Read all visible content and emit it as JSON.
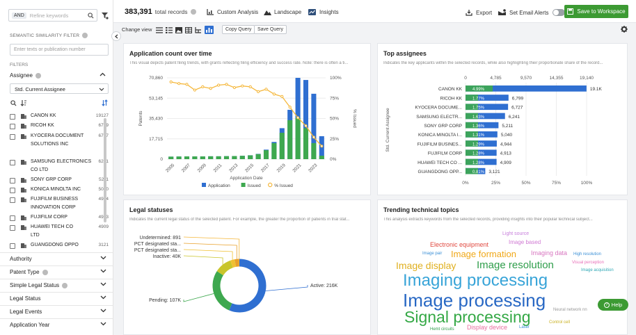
{
  "sidebar": {
    "search": {
      "and_label": "AND",
      "placeholder": "Refine keywords"
    },
    "semantic": {
      "title": "SEMANTIC SIMILARITY FILTER",
      "placeholder": "Enter texts or publication number"
    },
    "filters_label": "FILTERS",
    "assignee": {
      "title": "Assignee",
      "dropdown_value": "Std. Current Assignee",
      "items": [
        {
          "name": "CANON KK",
          "count": "19127"
        },
        {
          "name": "RICOH KK",
          "count": "6799"
        },
        {
          "name": "KYOCERA DOCUMENT SOLUTIONS INC",
          "count": "6727"
        },
        {
          "name": "SAMSUNG ELECTRONICS CO LTD",
          "count": "6241"
        },
        {
          "name": "SONY GRP CORP",
          "count": "5211"
        },
        {
          "name": "KONICA MINOLTA INC",
          "count": "5040"
        },
        {
          "name": "FUJIFILM BUSINESS INNOVATION CORP",
          "count": "4944"
        },
        {
          "name": "FUJIFILM CORP",
          "count": "4913"
        },
        {
          "name": "HUAWEI TECH CO LTD",
          "count": "4909"
        },
        {
          "name": "GUANGDONG OPPO",
          "count": "3121"
        }
      ]
    },
    "filters": [
      "Authority",
      "Patent Type",
      "Simple Legal Status",
      "Legal Status",
      "Legal Events",
      "Application Year"
    ]
  },
  "toolbar": {
    "total_count": "383,391",
    "total_label": "total records",
    "custom_analysis": "Custom Analysis",
    "landscape": "Landscape",
    "insights": "Insights",
    "export": "Export",
    "email_alerts": "Set Email Alerts",
    "save_workspace": "Save to Workspace",
    "change_view": "Change view",
    "copy_query": "Copy Query",
    "save_query": "Save Query"
  },
  "colors": {
    "accent": "#2f6fd1",
    "green": "#3ea84f",
    "save_green": "#3c9a33",
    "orange": "#f5b73a"
  },
  "panels": {
    "app_count": {
      "title": "Application count over time",
      "desc": "This visual depicts patent filing trends, with grants reflecting filing efficiency and success rate. Note: there is often a ti..."
    },
    "top_assignees": {
      "title": "Top assignees",
      "desc": "Indicates the key applicants within the selected records, while also highlighting their proportionate share of the record..."
    },
    "legal": {
      "title": "Legal statuses",
      "desc": "Indicates the current legal status of the selected patent. For example, the greater the proportion of patients in trial stat..."
    },
    "trending": {
      "title": "Trending technical topics",
      "desc": "This analysis extracts keywords from the selected records, providing insights into their popular technical subject..."
    }
  },
  "help_label": "Help",
  "chart_data": [
    {
      "type": "bar",
      "title": "Application count over time",
      "xlabel": "Application Date",
      "ylabel": "Patents",
      "y2label": "% Issued",
      "ylim": [
        0,
        70860
      ],
      "y_ticks": [
        "70,860",
        "53,145",
        "35,430",
        "17,715",
        "0"
      ],
      "y2_ticks": [
        "100%",
        "75%",
        "50%",
        "25%",
        "0%"
      ],
      "x_tick_labels": [
        "2005",
        "2007",
        "2009",
        "2011",
        "2013",
        "2015",
        "2017",
        "2019",
        "2021",
        "2023"
      ],
      "categories": [
        "2005",
        "2006",
        "2007",
        "2008",
        "2009",
        "2010",
        "2011",
        "2012",
        "2013",
        "2014",
        "2015",
        "2016",
        "2017",
        "2018",
        "2019",
        "2020",
        "2021",
        "2022",
        "2023",
        "2024"
      ],
      "series": [
        {
          "name": "Application",
          "values": [
            2200,
            2300,
            2400,
            2400,
            2400,
            2500,
            2500,
            2600,
            2700,
            2900,
            3400,
            4600,
            8300,
            15000,
            27000,
            43000,
            71000,
            69000,
            57000,
            20000
          ]
        },
        {
          "name": "Issued",
          "values": [
            2200,
            2300,
            2400,
            2400,
            2400,
            2500,
            2500,
            2600,
            2700,
            2900,
            3300,
            4400,
            7800,
            14000,
            23000,
            34000,
            36000,
            27000,
            14000,
            3000
          ]
        },
        {
          "name": "% Issued",
          "values": [
            95,
            93,
            92,
            85,
            89,
            87,
            91,
            92,
            88,
            90,
            89,
            83,
            86,
            80,
            77,
            64,
            51,
            41,
            27,
            16
          ]
        }
      ],
      "legend": "bottom"
    },
    {
      "type": "bar",
      "title": "Top assignees",
      "ylabel": "Std. Current Assignee",
      "x_ticks_top": [
        "0",
        "4,785",
        "9,570",
        "14,355",
        "19,140"
      ],
      "x_ticks_bottom": [
        "0%",
        "25%",
        "50%",
        "75%",
        "100%"
      ],
      "categories": [
        "CANON KK",
        "RICOH KK",
        "KYOCERA DOCUME...",
        "SAMSUNG ELECTR...",
        "SONY GRP CORP",
        "KONICA MINOLTA I...",
        "FUJIFILM BUSINES...",
        "FUJIFILM CORP",
        "HUAWEI TECH CO ...",
        "GUANGDONG OPP..."
      ],
      "values": [
        19127,
        6799,
        6727,
        6241,
        5211,
        5040,
        4944,
        4913,
        4909,
        3121
      ],
      "value_labels": [
        "19.1K",
        "6,799",
        "6,727",
        "6,241",
        "5,211",
        "5,040",
        "4,944",
        "4,913",
        "4,909",
        "3,121"
      ],
      "percents": [
        "4.99%",
        "1.77%",
        "1.75%",
        "1.63%",
        "1.36%",
        "1.31%",
        "1.29%",
        "1.28%",
        "1.28%",
        "0.81%"
      ]
    },
    {
      "type": "pie",
      "title": "Legal statuses",
      "slices": [
        {
          "label": "Active",
          "value": 216000,
          "value_label": "216K",
          "color": "#2f6fd1"
        },
        {
          "label": "Pending",
          "value": 107000,
          "value_label": "107K",
          "color": "#3ea84f"
        },
        {
          "label": "Inactive",
          "value": 40000,
          "value_label": "40K",
          "color": "#c9c52b"
        },
        {
          "label": "PCT designated sta...",
          "value": 10000,
          "value_label": "",
          "color": "#f0c032"
        },
        {
          "label": "PCT designated sta...",
          "value": 10000,
          "value_label": "",
          "color": "#e8a02a"
        },
        {
          "label": "Undetermined",
          "value": 891,
          "value_label": "891",
          "color": "#f5b73a"
        }
      ]
    }
  ],
  "word_cloud": [
    {
      "text": "Light source",
      "color": "#c77ddb",
      "size": 7
    },
    {
      "text": "Electronic equipment",
      "color": "#e0483f",
      "size": 9
    },
    {
      "text": "Image based",
      "color": "#d07ad3",
      "size": 8
    },
    {
      "text": "Image pair",
      "color": "#3a8fd6",
      "size": 6
    },
    {
      "text": "Image formation",
      "color": "#f0a818",
      "size": 13
    },
    {
      "text": "Imaging data",
      "color": "#d876c0",
      "size": 9
    },
    {
      "text": "High resolution",
      "color": "#3a8fd6",
      "size": 6
    },
    {
      "text": "Image display",
      "color": "#e0b020",
      "size": 14
    },
    {
      "text": "Image resolution",
      "color": "#2e9d4a",
      "size": 15
    },
    {
      "text": "Visual perception",
      "color": "#e86fb8",
      "size": 6
    },
    {
      "text": "Image acquisition",
      "color": "#2ea7b5",
      "size": 6
    },
    {
      "text": "Imaging processing",
      "color": "#38a4d8",
      "size": 24
    },
    {
      "text": "Image processing",
      "color": "#2868c4",
      "size": 26
    },
    {
      "text": "Signal processing",
      "color": "#34a845",
      "size": 23
    },
    {
      "text": "Neural network nn",
      "color": "#999999",
      "size": 6
    },
    {
      "text": "Hemt circuits",
      "color": "#2e9d4a",
      "size": 6
    },
    {
      "text": "Display device",
      "color": "#e86fa0",
      "size": 9
    },
    {
      "text": "Laser",
      "color": "#3a8fd6",
      "size": 6
    },
    {
      "text": "Control cell",
      "color": "#c8b020",
      "size": 6
    }
  ]
}
